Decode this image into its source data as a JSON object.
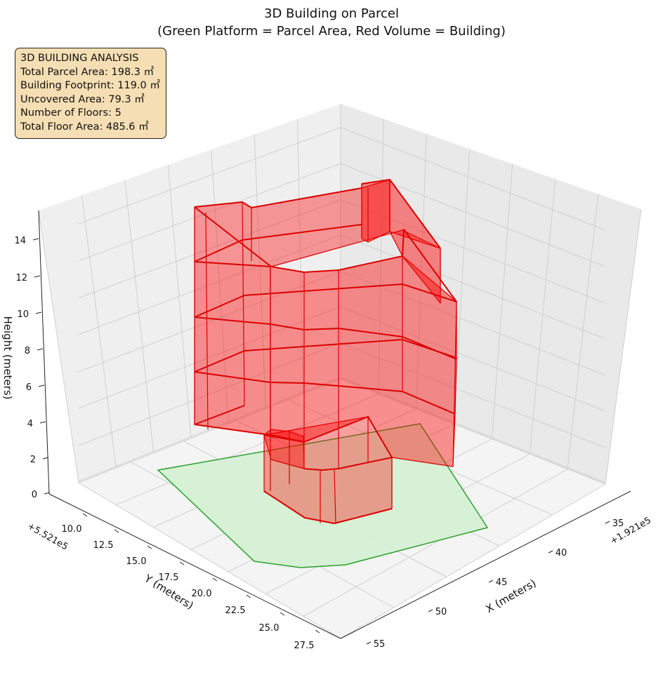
{
  "chart_data": {
    "type": "3d-polygons",
    "title": "3D Building on Parcel",
    "subtitle": "(Green Platform = Parcel Area, Red Volume = Building)",
    "xlabel": "X (meters)",
    "ylabel": "Y (meters)",
    "zlabel": "Height (meters)",
    "x_offset": "+1.921e5",
    "y_offset": "+5.521e5",
    "x_ticks": [
      "35",
      "40",
      "45",
      "50",
      "55"
    ],
    "y_ticks": [
      "10.0",
      "12.5",
      "15.0",
      "17.5",
      "20.0",
      "22.5",
      "25.0",
      "27.5"
    ],
    "z_ticks": [
      "0",
      "2",
      "4",
      "6",
      "8",
      "10",
      "12",
      "14"
    ],
    "grid": true,
    "parcel_color": "#2ca02c",
    "parcel_fill": "#d4f0d4",
    "building_color": "#dd0000",
    "building_fill": "#ff0000",
    "annotation": [
      "3D BUILDING ANALYSIS",
      "Total Parcel Area: 198.3 ㎡",
      "Building Footprint: 119.0 ㎡",
      "Uncovered Area: 79.3 ㎡",
      "Number of Floors: 5",
      "Total Floor Area: 485.6 ㎡"
    ]
  }
}
